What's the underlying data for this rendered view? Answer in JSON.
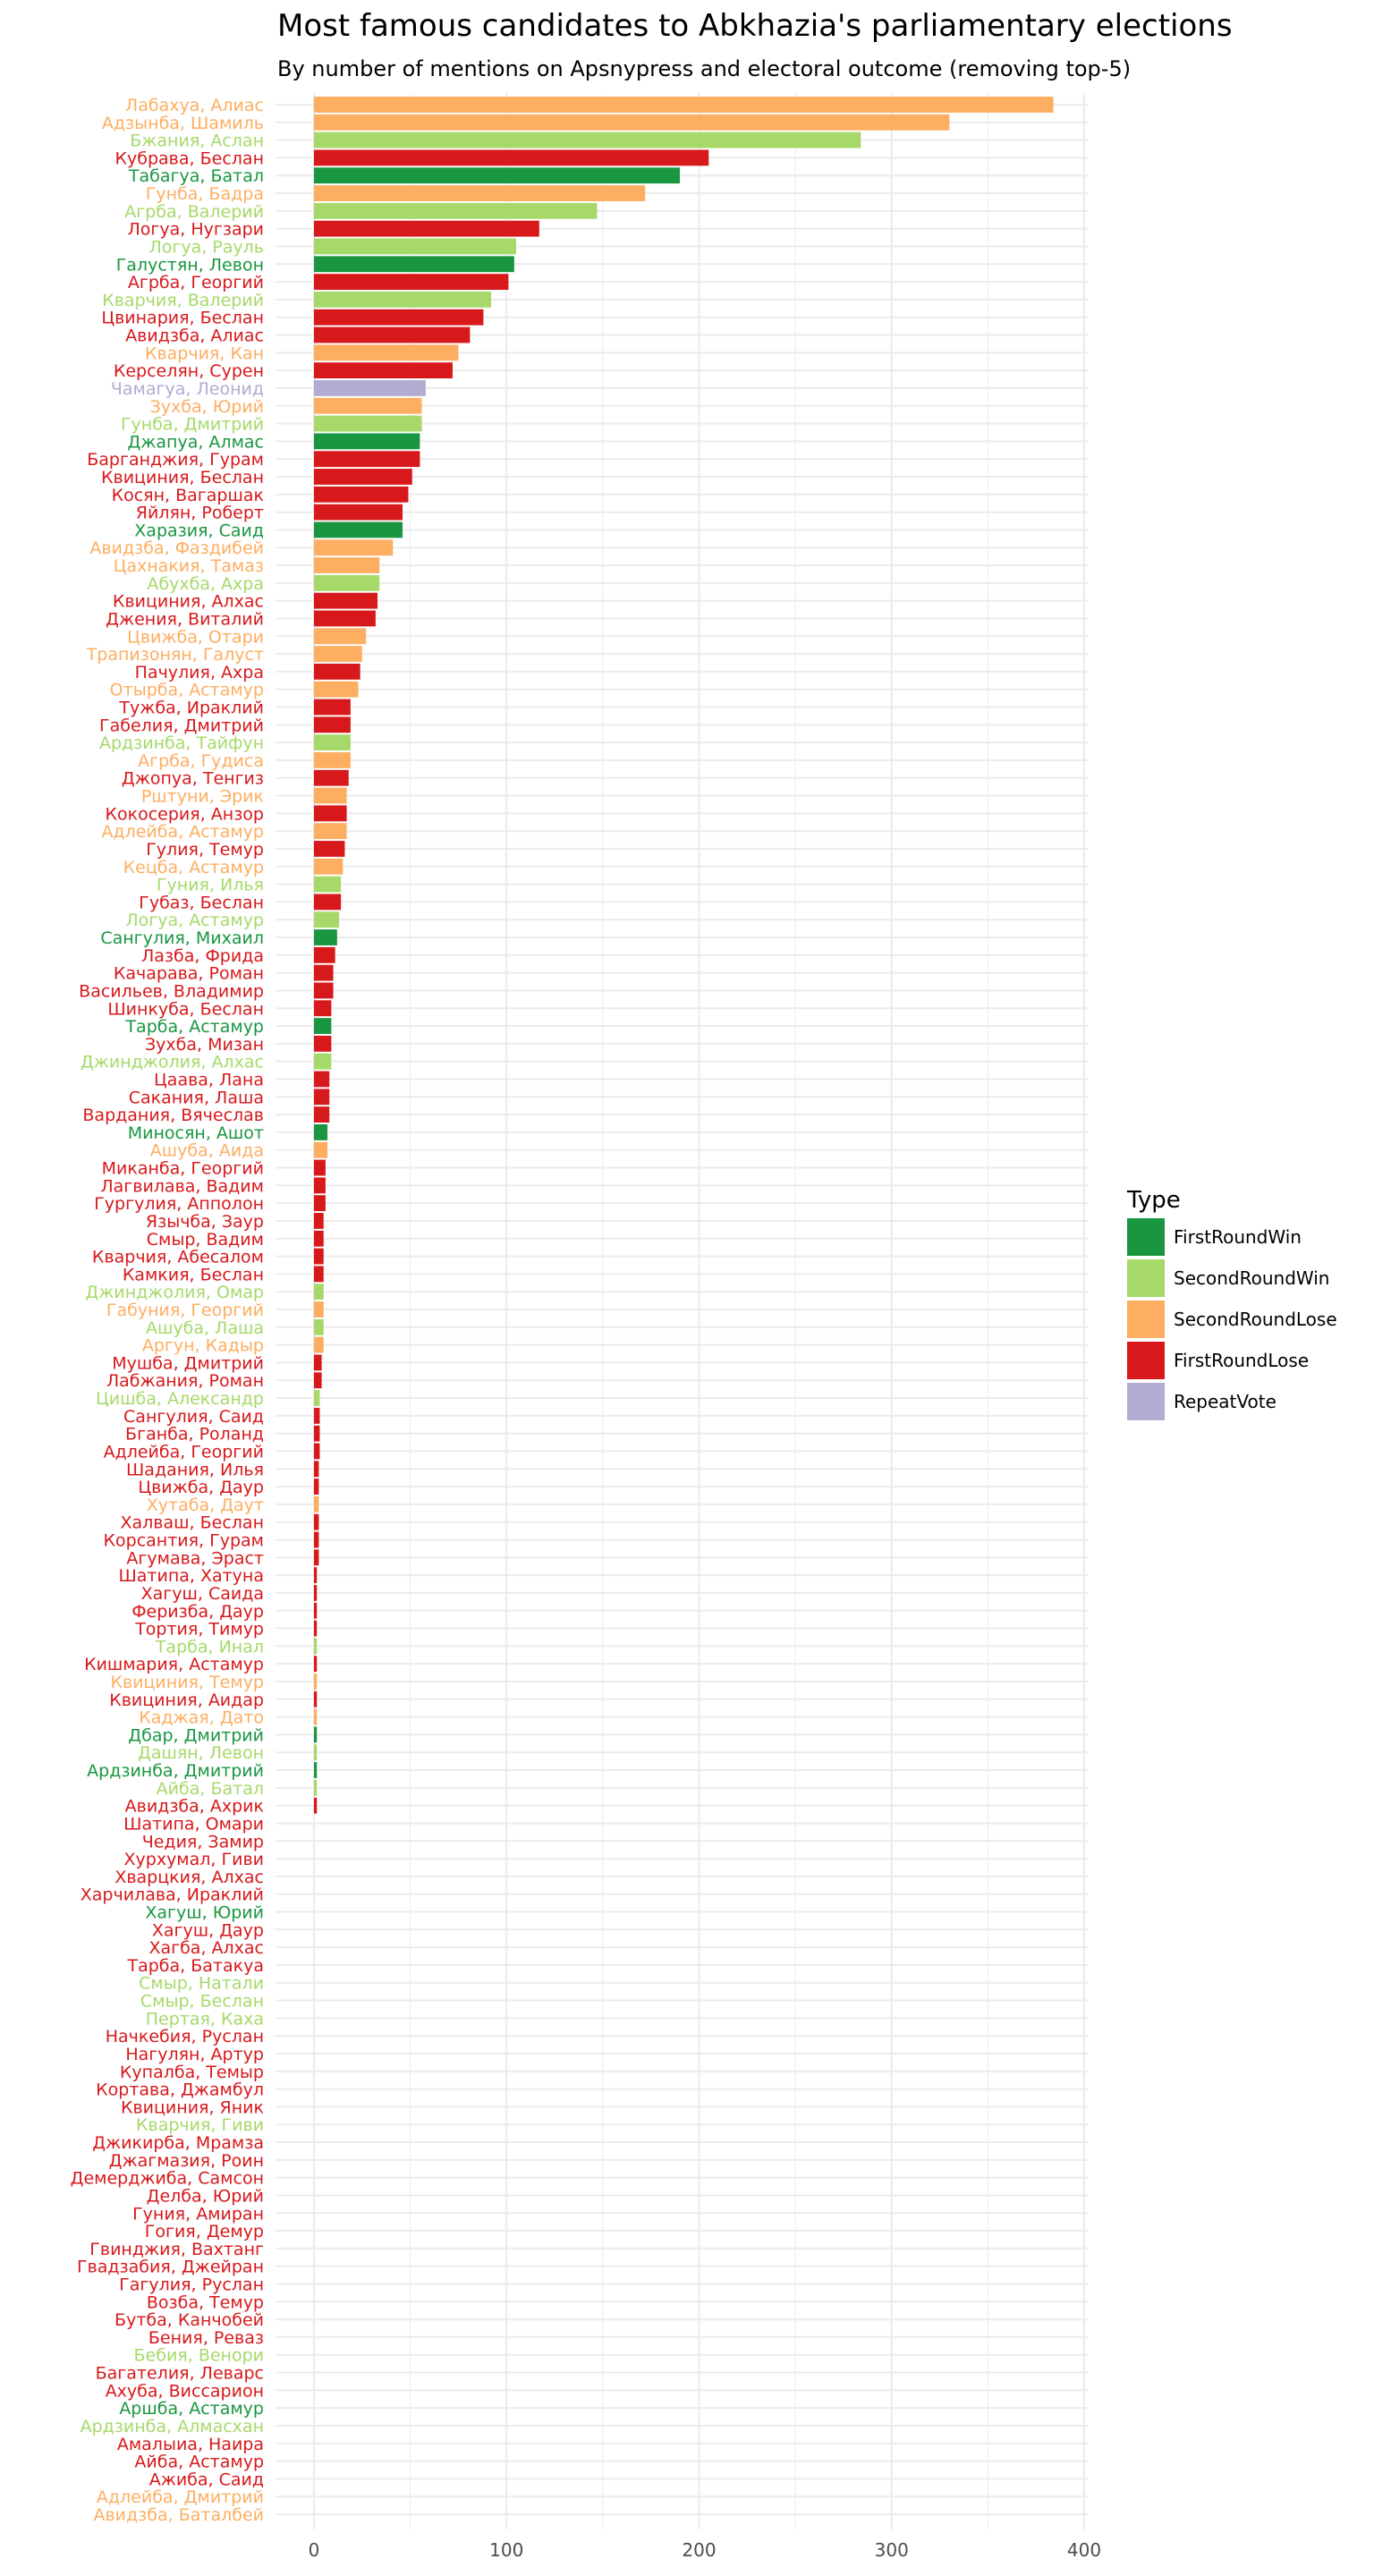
{
  "colors": {
    "FirstRoundWin": "#1a9641",
    "SecondRoundWin": "#a6d96a",
    "SecondRoundLose": "#fdae61",
    "FirstRoundLose": "#d7191c",
    "RepeatVote": "#b2abd2",
    "grid": "#ebebeb"
  },
  "chart_data": {
    "type": "bar",
    "orientation": "horizontal",
    "title": "Most famous candidates to Abkhazia's parliamentary elections",
    "subtitle": "By number of mentions on Apsnypress and electoral outcome (removing top-5)",
    "xlabel": "",
    "ylabel": "",
    "xlim": [
      0,
      400
    ],
    "xticks": [
      "0",
      "100",
      "200",
      "300",
      "400"
    ],
    "grid": true,
    "legend": {
      "title": "Type",
      "position": "right",
      "entries": [
        "FirstRoundWin",
        "SecondRoundWin",
        "SecondRoundLose",
        "FirstRoundLose",
        "RepeatVote"
      ]
    },
    "bars": [
      {
        "name": "Лабахуа, Алиас",
        "value": 384,
        "type": "SecondRoundLose"
      },
      {
        "name": "Адзынба, Шамиль",
        "value": 330,
        "type": "SecondRoundLose"
      },
      {
        "name": "Бжания, Аслан",
        "value": 284,
        "type": "SecondRoundWin"
      },
      {
        "name": "Кубрава, Беслан",
        "value": 205,
        "type": "FirstRoundLose"
      },
      {
        "name": "Табагуа, Батал",
        "value": 190,
        "type": "FirstRoundWin"
      },
      {
        "name": "Гунба, Бадра",
        "value": 172,
        "type": "SecondRoundLose"
      },
      {
        "name": "Агрба, Валерий",
        "value": 147,
        "type": "SecondRoundWin"
      },
      {
        "name": "Логуа, Нугзари",
        "value": 117,
        "type": "FirstRoundLose"
      },
      {
        "name": "Логуа, Рауль",
        "value": 105,
        "type": "SecondRoundWin"
      },
      {
        "name": "Галустян, Левон",
        "value": 104,
        "type": "FirstRoundWin"
      },
      {
        "name": "Агрба, Георгий",
        "value": 101,
        "type": "FirstRoundLose"
      },
      {
        "name": "Кварчия, Валерий",
        "value": 92,
        "type": "SecondRoundWin"
      },
      {
        "name": "Цвинария, Беслан",
        "value": 88,
        "type": "FirstRoundLose"
      },
      {
        "name": "Авидзба, Алиас",
        "value": 81,
        "type": "FirstRoundLose"
      },
      {
        "name": "Кварчия, Кан",
        "value": 75,
        "type": "SecondRoundLose"
      },
      {
        "name": "Керселян, Сурен",
        "value": 72,
        "type": "FirstRoundLose"
      },
      {
        "name": "Чамагуа, Леонид",
        "value": 58,
        "type": "RepeatVote"
      },
      {
        "name": "Зухба, Юрий",
        "value": 56,
        "type": "SecondRoundLose"
      },
      {
        "name": "Гунба, Дмитрий",
        "value": 56,
        "type": "SecondRoundWin"
      },
      {
        "name": "Джапуа, Алмас",
        "value": 55,
        "type": "FirstRoundWin"
      },
      {
        "name": "Барганджия, Гурам",
        "value": 55,
        "type": "FirstRoundLose"
      },
      {
        "name": "Квициния, Беслан",
        "value": 51,
        "type": "FirstRoundLose"
      },
      {
        "name": "Косян, Вагаршак",
        "value": 49,
        "type": "FirstRoundLose"
      },
      {
        "name": "Яйлян, Роберт",
        "value": 46,
        "type": "FirstRoundLose"
      },
      {
        "name": "Харазия, Саид",
        "value": 46,
        "type": "FirstRoundWin"
      },
      {
        "name": "Авидзба, Фаздибей",
        "value": 41,
        "type": "SecondRoundLose"
      },
      {
        "name": "Цахнакия, Тамаз",
        "value": 34,
        "type": "SecondRoundLose"
      },
      {
        "name": "Абухба, Ахра",
        "value": 34,
        "type": "SecondRoundWin"
      },
      {
        "name": "Квициния, Алхас",
        "value": 33,
        "type": "FirstRoundLose"
      },
      {
        "name": "Джения, Виталий",
        "value": 32,
        "type": "FirstRoundLose"
      },
      {
        "name": "Цвижба, Отари",
        "value": 27,
        "type": "SecondRoundLose"
      },
      {
        "name": "Трапизонян, Галуст",
        "value": 25,
        "type": "SecondRoundLose"
      },
      {
        "name": "Пачулия, Ахра",
        "value": 24,
        "type": "FirstRoundLose"
      },
      {
        "name": "Отырба, Астамур",
        "value": 23,
        "type": "SecondRoundLose"
      },
      {
        "name": "Тужба, Ираклий",
        "value": 19,
        "type": "FirstRoundLose"
      },
      {
        "name": "Габелия, Дмитрий",
        "value": 19,
        "type": "FirstRoundLose"
      },
      {
        "name": "Ардзинба, Тайфун",
        "value": 19,
        "type": "SecondRoundWin"
      },
      {
        "name": "Агрба, Гудиса",
        "value": 19,
        "type": "SecondRoundLose"
      },
      {
        "name": "Джопуа, Тенгиз",
        "value": 18,
        "type": "FirstRoundLose"
      },
      {
        "name": "Рштуни, Эрик",
        "value": 17,
        "type": "SecondRoundLose"
      },
      {
        "name": "Кокосерия, Анзор",
        "value": 17,
        "type": "FirstRoundLose"
      },
      {
        "name": "Адлейба, Астамур",
        "value": 17,
        "type": "SecondRoundLose"
      },
      {
        "name": "Гулия, Темур",
        "value": 16,
        "type": "FirstRoundLose"
      },
      {
        "name": "Кецба, Астамур",
        "value": 15,
        "type": "SecondRoundLose"
      },
      {
        "name": "Гуния, Илья",
        "value": 14,
        "type": "SecondRoundWin"
      },
      {
        "name": "Губаз, Беслан",
        "value": 14,
        "type": "FirstRoundLose"
      },
      {
        "name": "Логуа, Астамур",
        "value": 13,
        "type": "SecondRoundWin"
      },
      {
        "name": "Сангулия, Михаил",
        "value": 12,
        "type": "FirstRoundWin"
      },
      {
        "name": "Лазба, Фрида",
        "value": 11,
        "type": "FirstRoundLose"
      },
      {
        "name": "Качарава, Роман",
        "value": 10,
        "type": "FirstRoundLose"
      },
      {
        "name": "Васильев, Владимир",
        "value": 10,
        "type": "FirstRoundLose"
      },
      {
        "name": "Шинкуба, Беслан",
        "value": 9,
        "type": "FirstRoundLose"
      },
      {
        "name": "Тарба, Астамур",
        "value": 9,
        "type": "FirstRoundWin"
      },
      {
        "name": "Зухба, Мизан",
        "value": 9,
        "type": "FirstRoundLose"
      },
      {
        "name": "Джинджолия, Алхас",
        "value": 9,
        "type": "SecondRoundWin"
      },
      {
        "name": "Цаава, Лана",
        "value": 8,
        "type": "FirstRoundLose"
      },
      {
        "name": "Сакания, Лаша",
        "value": 8,
        "type": "FirstRoundLose"
      },
      {
        "name": "Вардания, Вячеслав",
        "value": 8,
        "type": "FirstRoundLose"
      },
      {
        "name": "Миносян, Ашот",
        "value": 7,
        "type": "FirstRoundWin"
      },
      {
        "name": "Ашуба, Аида",
        "value": 7,
        "type": "SecondRoundLose"
      },
      {
        "name": "Миканба, Георгий",
        "value": 6,
        "type": "FirstRoundLose"
      },
      {
        "name": "Лагвилава, Вадим",
        "value": 6,
        "type": "FirstRoundLose"
      },
      {
        "name": "Гургулия, Апполон",
        "value": 6,
        "type": "FirstRoundLose"
      },
      {
        "name": "Язычба, Заур",
        "value": 5,
        "type": "FirstRoundLose"
      },
      {
        "name": "Смыр, Вадим",
        "value": 5,
        "type": "FirstRoundLose"
      },
      {
        "name": "Кварчия, Абесалом",
        "value": 5,
        "type": "FirstRoundLose"
      },
      {
        "name": "Камкия, Беслан",
        "value": 5,
        "type": "FirstRoundLose"
      },
      {
        "name": "Джинджолия, Омар",
        "value": 5,
        "type": "SecondRoundWin"
      },
      {
        "name": "Габуния, Георгий",
        "value": 5,
        "type": "SecondRoundLose"
      },
      {
        "name": "Ашуба, Лаша",
        "value": 5,
        "type": "SecondRoundWin"
      },
      {
        "name": "Аргун, Кадыр",
        "value": 5,
        "type": "SecondRoundLose"
      },
      {
        "name": "Мушба, Дмитрий",
        "value": 4,
        "type": "FirstRoundLose"
      },
      {
        "name": "Лабжания, Роман",
        "value": 4,
        "type": "FirstRoundLose"
      },
      {
        "name": "Цишба, Александр",
        "value": 3,
        "type": "SecondRoundWin"
      },
      {
        "name": "Сангулия, Саид",
        "value": 3,
        "type": "FirstRoundLose"
      },
      {
        "name": "Бганба, Роланд",
        "value": 3,
        "type": "FirstRoundLose"
      },
      {
        "name": "Адлейба, Георгий",
        "value": 3,
        "type": "FirstRoundLose"
      },
      {
        "name": "Шадания, Илья",
        "value": 2.5,
        "type": "FirstRoundLose"
      },
      {
        "name": "Цвижба, Даур",
        "value": 2.5,
        "type": "FirstRoundLose"
      },
      {
        "name": "Хутаба, Даут",
        "value": 2.5,
        "type": "SecondRoundLose"
      },
      {
        "name": "Халваш, Беслан",
        "value": 2.5,
        "type": "FirstRoundLose"
      },
      {
        "name": "Корсантия, Гурам",
        "value": 2.5,
        "type": "FirstRoundLose"
      },
      {
        "name": "Агумава, Эраст",
        "value": 2.5,
        "type": "FirstRoundLose"
      },
      {
        "name": "Шатипа, Хатуна",
        "value": 1.5,
        "type": "FirstRoundLose"
      },
      {
        "name": "Хагуш, Саида",
        "value": 1.5,
        "type": "FirstRoundLose"
      },
      {
        "name": "Феризба, Даур",
        "value": 1.5,
        "type": "FirstRoundLose"
      },
      {
        "name": "Тортия, Тимур",
        "value": 1.5,
        "type": "FirstRoundLose"
      },
      {
        "name": "Тарба, Инал",
        "value": 1.5,
        "type": "SecondRoundWin"
      },
      {
        "name": "Кишмария, Астамур",
        "value": 1.5,
        "type": "FirstRoundLose"
      },
      {
        "name": "Квициния, Темур",
        "value": 1.5,
        "type": "SecondRoundLose"
      },
      {
        "name": "Квициния, Аидар",
        "value": 1.5,
        "type": "FirstRoundLose"
      },
      {
        "name": "Каджая, Дато",
        "value": 1.5,
        "type": "SecondRoundLose"
      },
      {
        "name": "Дбар, Дмитрий",
        "value": 1.5,
        "type": "FirstRoundWin"
      },
      {
        "name": "Дашян, Левон",
        "value": 1.5,
        "type": "SecondRoundWin"
      },
      {
        "name": "Ардзинба, Дмитрий",
        "value": 1.5,
        "type": "FirstRoundWin"
      },
      {
        "name": "Айба, Батал",
        "value": 1.5,
        "type": "SecondRoundWin"
      },
      {
        "name": "Авидзба, Ахрик",
        "value": 1.5,
        "type": "FirstRoundLose"
      },
      {
        "name": "Шатипа, Омари",
        "value": 0,
        "type": "FirstRoundLose"
      },
      {
        "name": "Чедия, Замир",
        "value": 0,
        "type": "FirstRoundLose"
      },
      {
        "name": "Хурхумал, Гиви",
        "value": 0,
        "type": "FirstRoundLose"
      },
      {
        "name": "Хварцкия, Алхас",
        "value": 0,
        "type": "FirstRoundLose"
      },
      {
        "name": "Харчилава, Ираклий",
        "value": 0,
        "type": "FirstRoundLose"
      },
      {
        "name": "Хагуш, Юрий",
        "value": 0,
        "type": "FirstRoundWin"
      },
      {
        "name": "Хагуш, Даур",
        "value": 0,
        "type": "FirstRoundLose"
      },
      {
        "name": "Хагба, Алхас",
        "value": 0,
        "type": "FirstRoundLose"
      },
      {
        "name": "Тарба, Батакуа",
        "value": 0,
        "type": "FirstRoundLose"
      },
      {
        "name": "Смыр, Натали",
        "value": 0,
        "type": "SecondRoundWin"
      },
      {
        "name": "Смыр, Беслан",
        "value": 0,
        "type": "SecondRoundWin"
      },
      {
        "name": "Пертая, Каха",
        "value": 0,
        "type": "SecondRoundWin"
      },
      {
        "name": "Начкебия, Руслан",
        "value": 0,
        "type": "FirstRoundLose"
      },
      {
        "name": "Нагулян, Артур",
        "value": 0,
        "type": "FirstRoundLose"
      },
      {
        "name": "Купалба, Темыр",
        "value": 0,
        "type": "FirstRoundLose"
      },
      {
        "name": "Кортава, Джамбул",
        "value": 0,
        "type": "FirstRoundLose"
      },
      {
        "name": "Квициния, Яник",
        "value": 0,
        "type": "FirstRoundLose"
      },
      {
        "name": "Кварчия, Гиви",
        "value": 0,
        "type": "SecondRoundWin"
      },
      {
        "name": "Джикирба, Мрамза",
        "value": 0,
        "type": "FirstRoundLose"
      },
      {
        "name": "Джагмазия, Роин",
        "value": 0,
        "type": "FirstRoundLose"
      },
      {
        "name": "Демерджиба, Самсон",
        "value": 0,
        "type": "FirstRoundLose"
      },
      {
        "name": "Делба, Юрий",
        "value": 0,
        "type": "FirstRoundLose"
      },
      {
        "name": "Гуния, Амиран",
        "value": 0,
        "type": "FirstRoundLose"
      },
      {
        "name": "Гогия, Демур",
        "value": 0,
        "type": "FirstRoundLose"
      },
      {
        "name": "Гвинджия, Вахтанг",
        "value": 0,
        "type": "FirstRoundLose"
      },
      {
        "name": "Гвадзабия, Джейран",
        "value": 0,
        "type": "FirstRoundLose"
      },
      {
        "name": "Гагулия, Руслан",
        "value": 0,
        "type": "FirstRoundLose"
      },
      {
        "name": "Возба, Темур",
        "value": 0,
        "type": "FirstRoundLose"
      },
      {
        "name": "Бутба, Канчобей",
        "value": 0,
        "type": "FirstRoundLose"
      },
      {
        "name": "Бения, Реваз",
        "value": 0,
        "type": "FirstRoundLose"
      },
      {
        "name": "Бебия, Венори",
        "value": 0,
        "type": "SecondRoundWin"
      },
      {
        "name": "Багателия, Леварс",
        "value": 0,
        "type": "FirstRoundLose"
      },
      {
        "name": "Ахуба, Виссарион",
        "value": 0,
        "type": "FirstRoundLose"
      },
      {
        "name": "Аршба, Астамур",
        "value": 0,
        "type": "FirstRoundWin"
      },
      {
        "name": "Ардзинба, Алмасхан",
        "value": 0,
        "type": "SecondRoundWin"
      },
      {
        "name": "Амалыиа, Наира",
        "value": 0,
        "type": "FirstRoundLose"
      },
      {
        "name": "Айба, Астамур",
        "value": 0,
        "type": "FirstRoundLose"
      },
      {
        "name": "Ажиба, Саид",
        "value": 0,
        "type": "FirstRoundLose"
      },
      {
        "name": "Адлейба, Дмитрий",
        "value": 0,
        "type": "SecondRoundLose"
      },
      {
        "name": "Авидзба, Баталбей",
        "value": 0,
        "type": "SecondRoundLose"
      }
    ]
  }
}
